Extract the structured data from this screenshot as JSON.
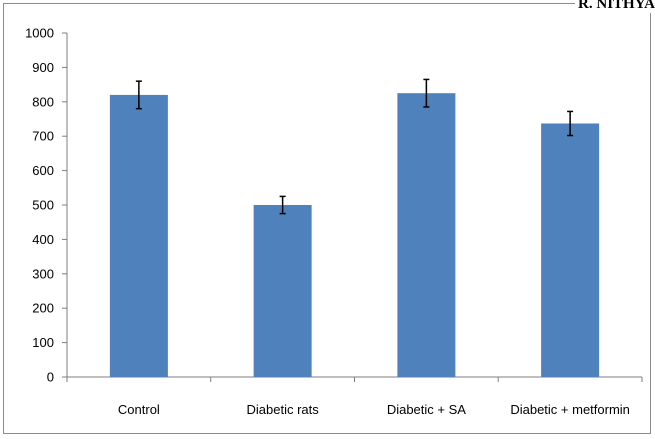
{
  "header": {
    "text": "R. NITHYA"
  },
  "colors": {
    "bar": "#4f81bd",
    "axis": "#7f7f7f",
    "frame": "#8c8c8c",
    "errorbar": "#000000"
  },
  "chart_data": {
    "type": "bar",
    "categories": [
      "Control",
      "Diabetic rats",
      "Diabetic + SA",
      "Diabetic + metformin"
    ],
    "values": [
      820,
      500,
      825,
      737
    ],
    "errors": [
      40,
      25,
      40,
      35
    ],
    "ylim": [
      0,
      1000
    ],
    "yticks": [
      "0",
      "100",
      "200",
      "300",
      "400",
      "500",
      "600",
      "700",
      "800",
      "900",
      "1000"
    ],
    "title": "",
    "xlabel": "",
    "ylabel": "",
    "grid": false,
    "legend": "none"
  }
}
